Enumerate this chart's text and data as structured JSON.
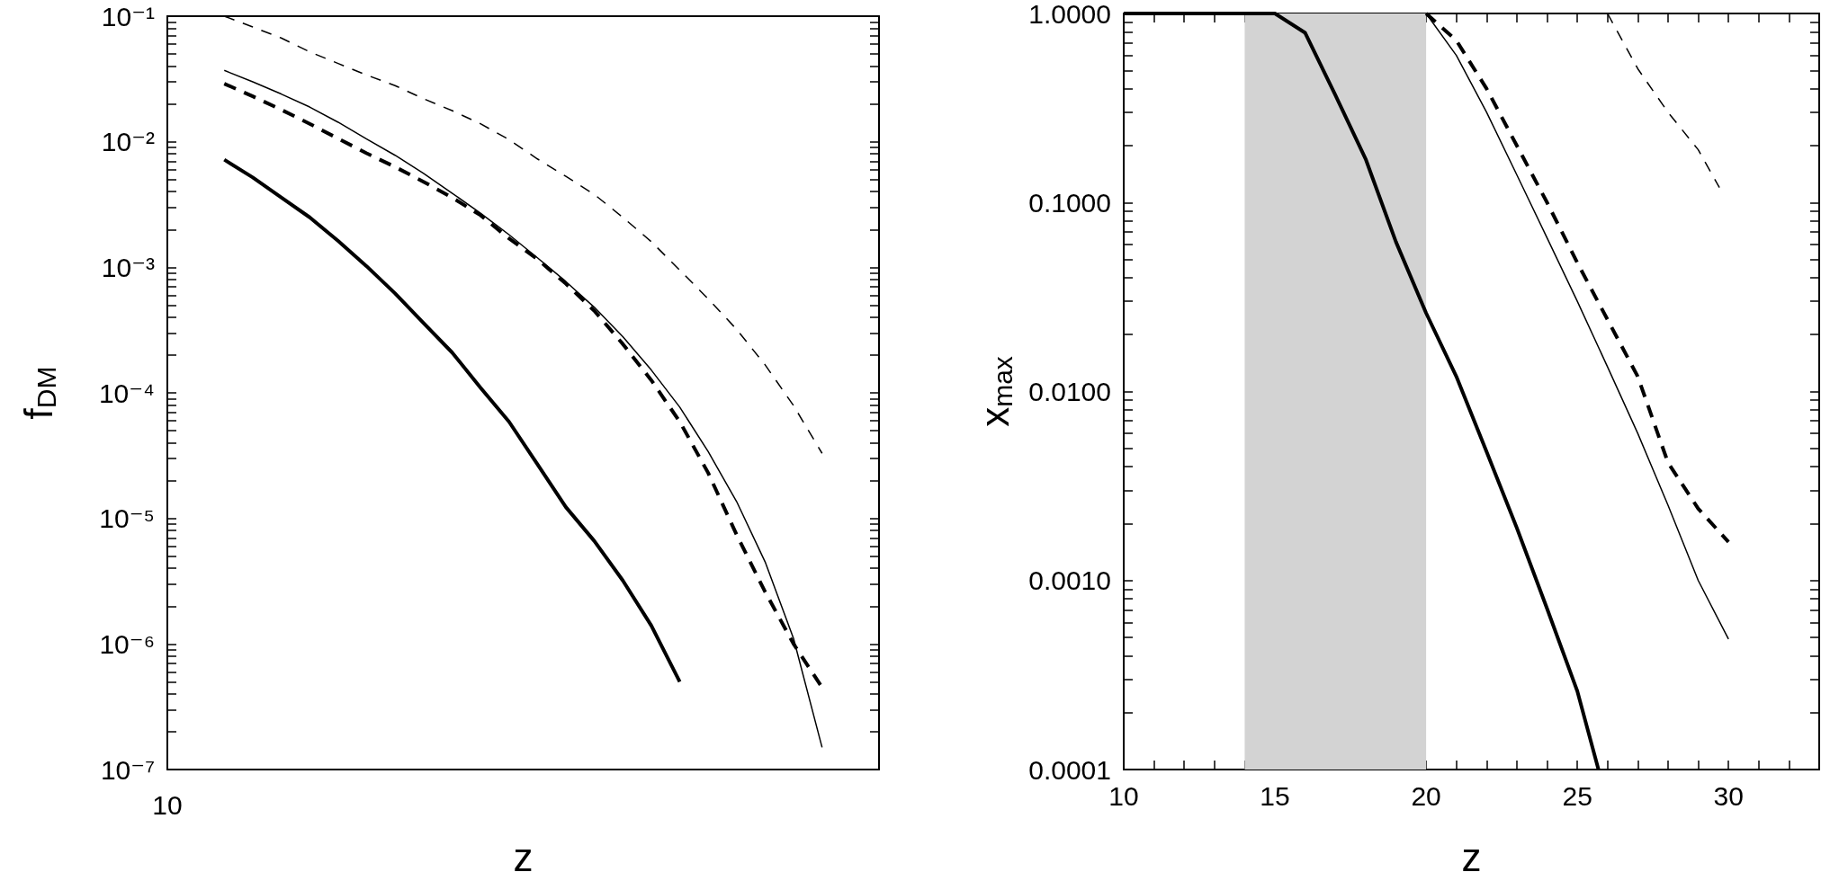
{
  "chart_data": [
    {
      "type": "line",
      "xlabel": "z",
      "ylabel": "f$_{DM}$",
      "log": "y",
      "marker": "none",
      "tick_labels": "y",
      "annotations": [
        "10"
      ],
      "categories": [
        null,
        null,
        null,
        null,
        null,
        null,
        null,
        null,
        null,
        null,
        null,
        null,
        null,
        null,
        null,
        null,
        null,
        null,
        null,
        null,
        null,
        null,
        null,
        null,
        null,
        null
      ],
      "ylim": [
        1e-07,
        0.1
      ],
      "yticks": [
        {
          "value": 1e-07,
          "label": "10⁻⁷"
        },
        {
          "value": 2e-07,
          "label": null
        },
        {
          "value": 3e-07,
          "label": null
        },
        {
          "value": 4e-07,
          "label": null
        },
        {
          "value": 5e-07,
          "label": null
        },
        {
          "value": 6e-07,
          "label": null
        },
        {
          "value": 7e-07,
          "label": null
        },
        {
          "value": 8e-07,
          "label": null
        },
        {
          "value": 9e-07,
          "label": null
        },
        {
          "value": 1e-06,
          "label": "10⁻⁶"
        },
        {
          "value": 2e-06,
          "label": null
        },
        {
          "value": 3e-06,
          "label": null
        },
        {
          "value": 4e-06,
          "label": null
        },
        {
          "value": 5e-06,
          "label": null
        },
        {
          "value": 6e-06,
          "label": null
        },
        {
          "value": 7e-06,
          "label": null
        },
        {
          "value": 8e-06,
          "label": null
        },
        {
          "value": 9e-06,
          "label": null
        },
        {
          "value": 1e-05,
          "label": "10⁻⁵"
        },
        {
          "value": 2e-05,
          "label": null
        },
        {
          "value": 3e-05,
          "label": null
        },
        {
          "value": 4e-05,
          "label": null
        },
        {
          "value": 5e-05,
          "label": null
        },
        {
          "value": 6e-05,
          "label": null
        },
        {
          "value": 7e-05,
          "label": null
        },
        {
          "value": 8e-05,
          "label": null
        },
        {
          "value": 9e-05,
          "label": null
        },
        {
          "value": 0.0001,
          "label": "10⁻⁴"
        },
        {
          "value": 0.0002,
          "label": null
        },
        {
          "value": 0.0003,
          "label": null
        },
        {
          "value": 0.0004,
          "label": null
        },
        {
          "value": 0.0005,
          "label": null
        },
        {
          "value": 0.0006,
          "label": null
        },
        {
          "value": 0.0007,
          "label": null
        },
        {
          "value": 0.0008,
          "label": null
        },
        {
          "value": 0.0009,
          "label": null
        },
        {
          "value": 0.001,
          "label": "10⁻³"
        },
        {
          "value": 0.002,
          "label": null
        },
        {
          "value": 0.003,
          "label": null
        },
        {
          "value": 0.004,
          "label": null
        },
        {
          "value": 0.005,
          "label": null
        },
        {
          "value": 0.006,
          "label": null
        },
        {
          "value": 0.007,
          "label": null
        },
        {
          "value": 0.008,
          "label": null
        },
        {
          "value": 0.009,
          "label": null
        },
        {
          "value": 0.01,
          "label": "10⁻²"
        },
        {
          "value": 0.02,
          "label": null
        },
        {
          "value": 0.03,
          "label": null
        },
        {
          "value": 0.04,
          "label": null
        },
        {
          "value": 0.05,
          "label": null
        },
        {
          "value": 0.06,
          "label": null
        },
        {
          "value": 0.07,
          "label": null
        },
        {
          "value": 0.08,
          "label": null
        },
        {
          "value": 0.09,
          "label": null
        },
        {
          "value": 0.1,
          "label": "10⁻¹"
        }
      ],
      "series": [
        {
          "color": "#000000",
          "line_style": "solid",
          "values": [
            null,
            null,
            0.0072,
            0.0052,
            0.0036,
            0.0025,
            0.00162,
            0.00102,
            0.00062,
            0.00036,
            0.00021,
            0.00011,
            5.9e-05,
            2.7e-05,
            1.23e-05,
            6.6e-06,
            3.2e-06,
            1.4e-06,
            5e-07,
            null,
            null,
            null,
            null,
            null,
            null,
            null
          ]
        },
        {
          "color": "#000000",
          "line_style": "solid",
          "values": [
            null,
            null,
            0.037,
            0.03,
            0.024,
            0.0189,
            0.0143,
            0.0105,
            0.0078,
            0.0056,
            0.0039,
            0.0027,
            0.00182,
            0.00119,
            0.00077,
            0.00048,
            0.00028,
            0.000152,
            7.7e-05,
            3.4e-05,
            1.36e-05,
            4.5e-06,
            1.1e-06,
            1.5e-07,
            null,
            null
          ]
        },
        {
          "color": "#000000",
          "line_style": "dashed",
          "values": [
            null,
            null,
            0.029,
            0.023,
            0.018,
            0.0139,
            0.0106,
            0.0081,
            0.0063,
            0.0048,
            0.0036,
            0.0026,
            0.0017,
            0.00116,
            0.00074,
            0.00045,
            0.000245,
            0.000126,
            5.9e-05,
            2.3e-05,
            7.4e-06,
            2.6e-06,
            1e-06,
            4.5e-07,
            null,
            null
          ]
        },
        {
          "color": "#000000",
          "line_style": "dashed",
          "values": [
            null,
            null,
            0.1,
            0.082,
            0.067,
            0.052,
            0.042,
            0.034,
            0.028,
            0.022,
            0.0177,
            0.0139,
            0.0104,
            0.0073,
            0.0053,
            0.0038,
            0.0025,
            0.0016,
            0.00095,
            0.00056,
            0.00032,
            0.000167,
            7.9e-05,
            3.3e-05,
            null,
            null
          ]
        }
      ]
    },
    {
      "type": "line",
      "xlabel": "z",
      "ylabel": "x$_{max}$",
      "log": "y",
      "marker": "none",
      "xlim": [
        10,
        33
      ],
      "xticks": [
        10,
        {
          "value": 11,
          "label": null
        },
        {
          "value": 12,
          "label": null
        },
        {
          "value": 13,
          "label": null
        },
        {
          "value": 14,
          "label": null
        },
        15,
        {
          "value": 16,
          "label": null
        },
        {
          "value": 17,
          "label": null
        },
        {
          "value": 18,
          "label": null
        },
        {
          "value": 19,
          "label": null
        },
        20,
        {
          "value": 21,
          "label": null
        },
        {
          "value": 22,
          "label": null
        },
        {
          "value": 23,
          "label": null
        },
        {
          "value": 24,
          "label": null
        },
        25,
        {
          "value": 26,
          "label": null
        },
        {
          "value": 27,
          "label": null
        },
        {
          "value": 28,
          "label": null
        },
        {
          "value": 29,
          "label": null
        },
        30,
        {
          "value": 31,
          "label": null
        },
        {
          "value": 32,
          "label": null
        }
      ],
      "ylim": [
        0.0001,
        1
      ],
      "yticks": [
        {
          "value": 0.0001,
          "label": "0.0001"
        },
        {
          "value": 0.0002,
          "label": null
        },
        {
          "value": 0.0003,
          "label": null
        },
        {
          "value": 0.0004,
          "label": null
        },
        {
          "value": 0.0005,
          "label": null
        },
        {
          "value": 0.0006,
          "label": null
        },
        {
          "value": 0.0007,
          "label": null
        },
        {
          "value": 0.0008,
          "label": null
        },
        {
          "value": 0.0009,
          "label": null
        },
        {
          "value": 0.001,
          "label": "0.0010"
        },
        {
          "value": 0.002,
          "label": null
        },
        {
          "value": 0.003,
          "label": null
        },
        {
          "value": 0.004,
          "label": null
        },
        {
          "value": 0.005,
          "label": null
        },
        {
          "value": 0.006,
          "label": null
        },
        {
          "value": 0.007,
          "label": null
        },
        {
          "value": 0.008,
          "label": null
        },
        {
          "value": 0.009,
          "label": null
        },
        {
          "value": 0.01,
          "label": "0.0100"
        },
        {
          "value": 0.02,
          "label": null
        },
        {
          "value": 0.03,
          "label": null
        },
        {
          "value": 0.04,
          "label": null
        },
        {
          "value": 0.05,
          "label": null
        },
        {
          "value": 0.06,
          "label": null
        },
        {
          "value": 0.07,
          "label": null
        },
        {
          "value": 0.08,
          "label": null
        },
        {
          "value": 0.09,
          "label": null
        },
        {
          "value": 0.1,
          "label": "0.1000"
        },
        {
          "value": 0.2,
          "label": null
        },
        {
          "value": 0.3,
          "label": null
        },
        {
          "value": 0.4,
          "label": null
        },
        {
          "value": 0.5,
          "label": null
        },
        {
          "value": 0.6,
          "label": null
        },
        {
          "value": 0.7,
          "label": null
        },
        {
          "value": 0.8,
          "label": null
        },
        {
          "value": 0.9,
          "label": null
        },
        {
          "value": 1,
          "label": "1.0000"
        }
      ],
      "bands": [
        {
          "axis": "x",
          "from": 14,
          "to": 20,
          "color": "#d3d3d3"
        }
      ],
      "series": [
        {
          "color": "#000000",
          "line_style": "solid",
          "x": [
            10,
            11,
            12,
            13,
            14,
            15,
            16,
            17,
            18,
            19,
            20,
            21,
            22,
            23,
            24,
            25,
            25.7
          ],
          "values": [
            1,
            1,
            1,
            1,
            1,
            1,
            0.79,
            0.37,
            0.17,
            0.062,
            0.026,
            0.012,
            0.0048,
            0.0019,
            0.00071,
            0.00026,
            0.0001
          ]
        },
        {
          "color": "#000000",
          "line_style": "solid",
          "x": [
            20,
            21,
            22,
            23,
            24,
            25,
            26,
            27,
            28,
            29,
            30
          ],
          "values": [
            1,
            0.6,
            0.3,
            0.14,
            0.065,
            0.03,
            0.0135,
            0.006,
            0.0025,
            0.001,
            0.00049
          ]
        },
        {
          "color": "#000000",
          "line_style": "dashed",
          "x": [
            20,
            21,
            22,
            23,
            24,
            25,
            26,
            27,
            28,
            29,
            30
          ],
          "values": [
            1,
            0.72,
            0.4,
            0.2,
            0.1,
            0.048,
            0.024,
            0.012,
            0.0042,
            0.0024,
            0.0016
          ]
        },
        {
          "color": "#000000",
          "line_style": "dashed",
          "x": [
            26,
            27,
            28,
            29,
            29.7
          ],
          "values": [
            1,
            0.51,
            0.3,
            0.19,
            0.12
          ]
        }
      ]
    }
  ]
}
